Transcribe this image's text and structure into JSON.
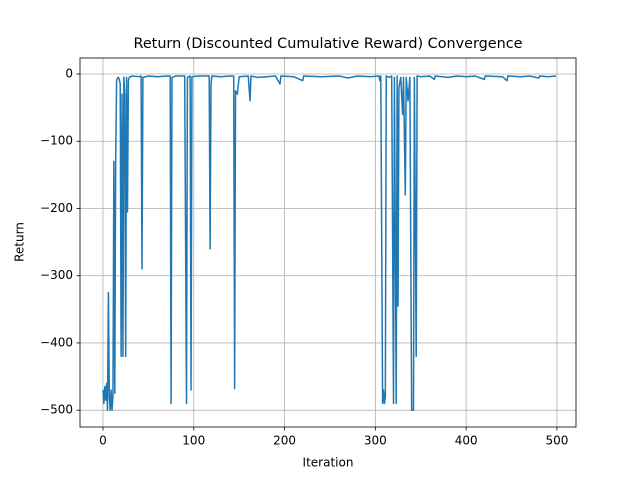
{
  "chart_data": {
    "type": "line",
    "title": "Return (Discounted Cumulative Reward) Convergence",
    "x_label": "Iteration",
    "y_label": "Return",
    "x": [
      0,
      1,
      2,
      3,
      4,
      5,
      6,
      7,
      8,
      9,
      10,
      11,
      12,
      13,
      14,
      15,
      16,
      17,
      18,
      19,
      20,
      21,
      22,
      23,
      24,
      25,
      26,
      27,
      28,
      29,
      32,
      40,
      42,
      43,
      44,
      50,
      60,
      70,
      74,
      75,
      76,
      80,
      90,
      92,
      93,
      96,
      97,
      98,
      105,
      110,
      117,
      118,
      119,
      120,
      130,
      140,
      144,
      145,
      146,
      148,
      150,
      160,
      162,
      163,
      170,
      180,
      190,
      195,
      196,
      210,
      220,
      221,
      240,
      260,
      270,
      280,
      295,
      304,
      305,
      306,
      308,
      309,
      310,
      311,
      312,
      315,
      318,
      320,
      321,
      323,
      324,
      325,
      326,
      328,
      330,
      331,
      333,
      334,
      336,
      338,
      340,
      342,
      343,
      345,
      346,
      350,
      360,
      365,
      366,
      380,
      390,
      400,
      410,
      420,
      421,
      440,
      445,
      446,
      460,
      470,
      480,
      481,
      490,
      499
    ],
    "series": [
      {
        "name": "Return",
        "color": "#1f77b4",
        "values": [
          -470,
          -490,
          -465,
          -485,
          -460,
          -500,
          -325,
          -480,
          -500,
          -470,
          -500,
          -480,
          -130,
          -475,
          -130,
          -10,
          -6,
          -5,
          -8,
          -15,
          -420,
          -30,
          -420,
          -5,
          -30,
          -420,
          -5,
          -205,
          -10,
          -5,
          -3,
          -4,
          -3,
          -290,
          -5,
          -3,
          -4,
          -3,
          -3,
          -490,
          -5,
          -3,
          -3,
          -490,
          -5,
          -3,
          -470,
          -4,
          -3,
          -3,
          -3,
          -260,
          -15,
          -3,
          -4,
          -3,
          -3,
          -468,
          -25,
          -30,
          -4,
          -3,
          -40,
          -3,
          -5,
          -4,
          -3,
          -15,
          -3,
          -4,
          -10,
          -3,
          -4,
          -3,
          -6,
          -3,
          -4,
          -3,
          -10,
          -3,
          -490,
          -470,
          -490,
          -480,
          -3,
          -5,
          -3,
          -490,
          -5,
          -490,
          -3,
          -345,
          -20,
          -5,
          -60,
          -5,
          -180,
          -5,
          -40,
          -5,
          -500,
          -500,
          -5,
          -420,
          -3,
          -4,
          -3,
          -8,
          -3,
          -5,
          -3,
          -4,
          -3,
          -8,
          -3,
          -4,
          -10,
          -3,
          -4,
          -3,
          -6,
          -3,
          -4,
          -3
        ]
      }
    ],
    "xlim": [
      -25.3,
      521
    ],
    "ylim": [
      -525,
      23.8
    ],
    "xticks": [
      0,
      100,
      200,
      300,
      400,
      500
    ],
    "yticks": [
      0,
      {
        "value": -100,
        "label": "−100"
      },
      {
        "value": -200,
        "label": "−200"
      },
      {
        "value": -300,
        "label": "−300"
      },
      {
        "value": -400,
        "label": "−400"
      },
      {
        "value": -500,
        "label": "−500"
      }
    ],
    "grid": true
  }
}
